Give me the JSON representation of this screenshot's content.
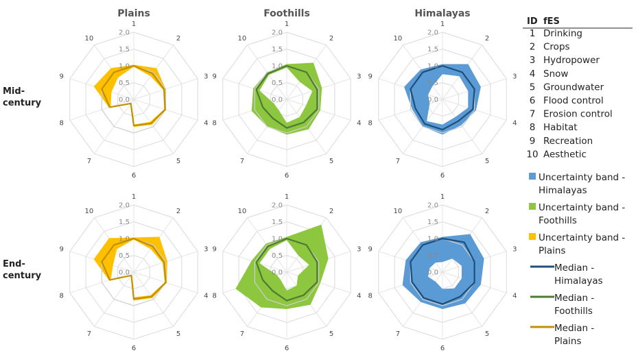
{
  "chart_data": {
    "type": "radar",
    "scale": {
      "ticks": [
        "0.0",
        "0.5",
        "1.0",
        "1.5",
        "2.0"
      ],
      "max": 2.0
    },
    "axes": [
      "1",
      "2",
      "3",
      "4",
      "5",
      "6",
      "7",
      "8",
      "9",
      "10"
    ],
    "columns": [
      "Plains",
      "Foothills",
      "Himalayas"
    ],
    "rows": [
      "Mid-\ncentury",
      "End-\ncentury"
    ],
    "colors": {
      "Plains": {
        "band": "#FFC000",
        "median": "#C09000"
      },
      "Foothills": {
        "band": "#8DC63F",
        "median": "#4E7A34"
      },
      "Himalayas": {
        "band": "#5B9BD5",
        "median": "#1F4E79"
      }
    },
    "panels": [
      {
        "row": 0,
        "col": 0,
        "region": "Plains",
        "period": "Mid-century",
        "median": [
          1.0,
          0.95,
          0.95,
          0.98,
          0.88,
          0.78,
          0.15,
          0.75,
          1.0,
          1.0
        ],
        "upper": [
          1.03,
          1.15,
          1.0,
          1.0,
          0.93,
          0.82,
          0.17,
          0.78,
          1.25,
          1.15
        ],
        "lower": [
          0.97,
          0.85,
          0.92,
          0.95,
          0.83,
          0.75,
          0.13,
          0.72,
          0.7,
          0.8
        ]
      },
      {
        "row": 0,
        "col": 1,
        "region": "Foothills",
        "period": "Mid-century",
        "median": [
          1.0,
          1.0,
          0.95,
          0.95,
          0.85,
          0.85,
          0.7,
          0.75,
          0.95,
          0.95
        ],
        "upper": [
          1.05,
          1.35,
          1.1,
          1.05,
          1.1,
          1.05,
          1.0,
          1.1,
          1.05,
          1.0
        ],
        "lower": [
          0.95,
          0.65,
          0.8,
          0.6,
          0.65,
          0.7,
          0.4,
          0.4,
          0.85,
          0.9
        ]
      },
      {
        "row": 0,
        "col": 2,
        "region": "Himalayas",
        "period": "Mid-century",
        "median": [
          1.0,
          1.0,
          1.0,
          0.95,
          0.8,
          0.9,
          0.9,
          0.85,
          1.0,
          1.0
        ],
        "upper": [
          1.05,
          1.3,
          1.2,
          1.05,
          0.95,
          1.05,
          1.0,
          0.95,
          1.2,
          1.1
        ],
        "lower": [
          0.75,
          0.85,
          0.8,
          0.8,
          0.65,
          0.75,
          0.8,
          0.4,
          0.45,
          0.5
        ]
      },
      {
        "row": 1,
        "col": 0,
        "region": "Plains",
        "period": "End-century",
        "median": [
          1.0,
          0.95,
          0.95,
          1.0,
          0.9,
          0.8,
          0.12,
          0.75,
          1.0,
          1.0
        ],
        "upper": [
          1.03,
          1.3,
          1.05,
          1.03,
          0.95,
          0.85,
          0.14,
          0.78,
          1.25,
          1.25
        ],
        "lower": [
          0.97,
          0.85,
          0.9,
          0.97,
          0.85,
          0.75,
          0.1,
          0.72,
          0.65,
          0.85
        ]
      },
      {
        "row": 1,
        "col": 1,
        "region": "Foothills",
        "period": "End-century",
        "median": [
          1.0,
          1.0,
          0.95,
          0.95,
          0.85,
          0.85,
          0.7,
          0.75,
          0.95,
          0.95
        ],
        "upper": [
          1.05,
          1.75,
          1.3,
          1.05,
          1.2,
          1.1,
          1.3,
          1.6,
          1.1,
          1.05
        ],
        "lower": [
          0.95,
          0.6,
          0.7,
          0.35,
          0.5,
          0.55,
          0.3,
          0.3,
          0.85,
          0.85
        ]
      },
      {
        "row": 1,
        "col": 2,
        "region": "Himalayas",
        "period": "End-century",
        "median": [
          1.0,
          1.1,
          1.0,
          1.0,
          0.9,
          0.95,
          0.95,
          0.95,
          1.0,
          1.0
        ],
        "upper": [
          1.05,
          1.4,
          1.3,
          1.2,
          1.15,
          1.1,
          1.1,
          1.25,
          1.15,
          1.1
        ],
        "lower": [
          0.3,
          0.5,
          0.6,
          0.6,
          0.6,
          0.5,
          0.35,
          0.45,
          0.4,
          0.35
        ]
      }
    ],
    "legend": {
      "table_header": [
        "ID",
        "fES"
      ],
      "table": [
        [
          "1",
          "Drinking"
        ],
        [
          "2",
          "Crops"
        ],
        [
          "3",
          "Hydropower"
        ],
        [
          "4",
          "Snow"
        ],
        [
          "5",
          "Groundwater"
        ],
        [
          "6",
          "Flood control"
        ],
        [
          "7",
          "Erosion control"
        ],
        [
          "8",
          "Habitat"
        ],
        [
          "9",
          "Recreation"
        ],
        [
          "10",
          "Aesthetic"
        ]
      ],
      "entries": [
        {
          "kind": "band",
          "region": "Himalayas",
          "lines": [
            "Uncertainty band -",
            "Himalayas"
          ]
        },
        {
          "kind": "band",
          "region": "Foothills",
          "lines": [
            "Uncertainty band -",
            "Foothills"
          ]
        },
        {
          "kind": "band",
          "region": "Plains",
          "lines": [
            "Uncertainty band -",
            "Plains"
          ]
        },
        {
          "kind": "line",
          "region": "Himalayas",
          "lines": [
            "Median -",
            "Himalayas"
          ]
        },
        {
          "kind": "line",
          "region": "Foothills",
          "lines": [
            "Median -",
            "Foothills"
          ]
        },
        {
          "kind": "line",
          "region": "Plains",
          "lines": [
            "Median -",
            "Plains"
          ]
        }
      ]
    }
  }
}
